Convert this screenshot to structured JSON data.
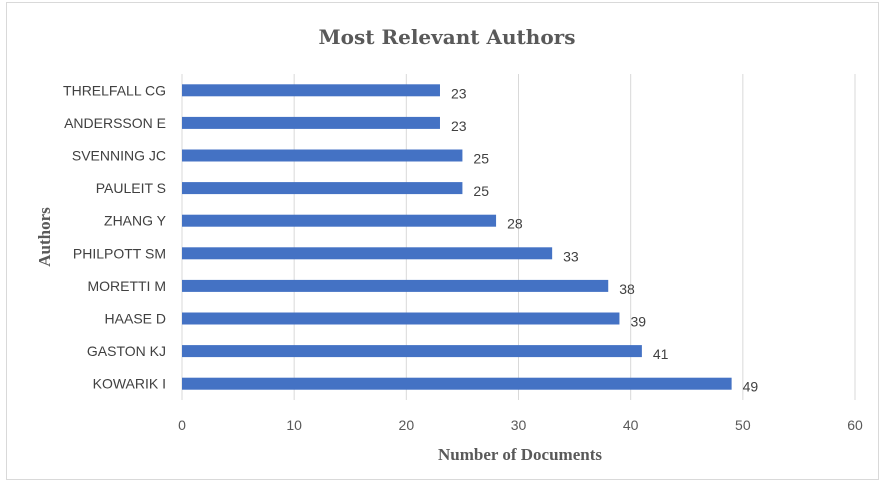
{
  "chart_data": {
    "type": "bar",
    "orientation": "horizontal",
    "title": "Most Relevant Authors",
    "xlabel": "Number of Documents",
    "ylabel": "Authors",
    "categories": [
      "THRELFALL CG",
      "ANDERSSON E",
      "SVENNING JC",
      "PAULEIT S",
      "ZHANG Y",
      "PHILPOTT SM",
      "MORETTI M",
      "HAASE D",
      "GASTON KJ",
      "KOWARIK I"
    ],
    "values": [
      23,
      23,
      25,
      25,
      28,
      33,
      38,
      39,
      41,
      49
    ],
    "xlim": [
      0,
      60
    ],
    "xticks": [
      0,
      10,
      20,
      30,
      40,
      50,
      60
    ],
    "grid": "vertical",
    "data_labels": true,
    "bar_color": "#4472c4"
  }
}
